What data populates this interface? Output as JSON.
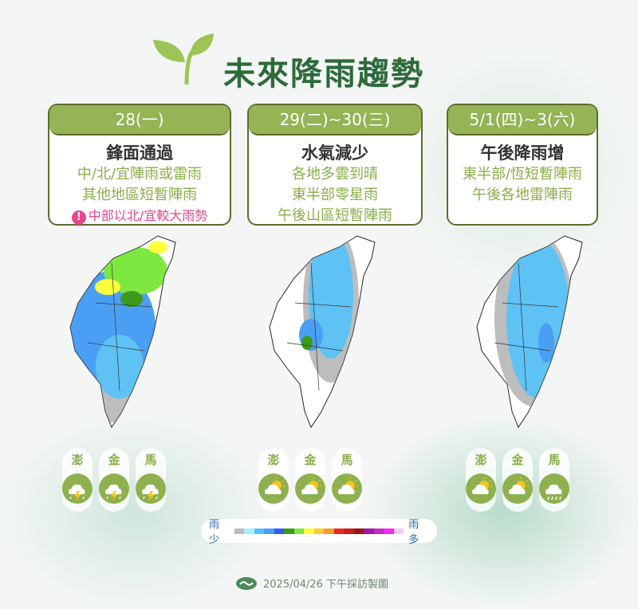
{
  "title": "未來降雨趨勢",
  "cards": [
    {
      "date": "28(一)",
      "headline": "鋒面通過",
      "lines": [
        "中/北/宜陣雨或雷雨",
        "其他地區短暫陣雨"
      ],
      "warning": "中部以北/宜較大雨勢"
    },
    {
      "date": "29(二)~30(三)",
      "headline": "水氣減少",
      "lines": [
        "各地多雲到晴",
        "東半部零星雨",
        "午後山區短暫陣雨"
      ]
    },
    {
      "date": "5/1(四)~3(六)",
      "headline": "午後降雨增",
      "lines": [
        "東半部/恆短暫陣雨",
        "午後各地雷陣雨"
      ]
    }
  ],
  "islands": {
    "names": [
      "澎",
      "金",
      "馬"
    ],
    "icons": [
      [
        "thunderstorm-icon",
        "thunderstorm-icon",
        "thunderstorm-icon"
      ],
      [
        "partly-cloudy-icon",
        "partly-cloudy-icon",
        "partly-cloudy-icon"
      ],
      [
        "partly-cloudy-icon",
        "partly-cloudy-icon",
        "rain-icon"
      ]
    ]
  },
  "legend": {
    "low": "雨少",
    "high": "雨多",
    "colors": [
      "#bdbdbd",
      "#a6f0fc",
      "#5ec2f5",
      "#4a9ff5",
      "#2f5ff5",
      "#3e9a1c",
      "#7ee840",
      "#ffff3c",
      "#ffcc33",
      "#f49d2c",
      "#e82a1e",
      "#c4201e",
      "#9e1516",
      "#9c1a9c",
      "#c42ac4",
      "#f02ef0",
      "#f5c8f5"
    ]
  },
  "footer": {
    "text": "2025/04/26 下午採訪製圖"
  },
  "colors": {
    "accent": "#94b455",
    "title": "#2d6a3a",
    "warning": "#e8468f"
  }
}
